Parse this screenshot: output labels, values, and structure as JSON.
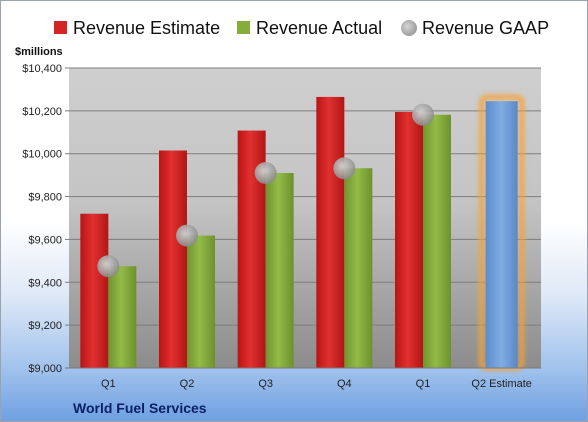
{
  "chart_data": {
    "type": "bar",
    "company": "World Fuel Services",
    "ylabel": "$millions",
    "ylim": [
      9000,
      10400
    ],
    "yticks": [
      9000,
      9200,
      9400,
      9600,
      9800,
      10000,
      10200,
      10400
    ],
    "ytick_labels": [
      "$9,000",
      "$9,200",
      "$9,400",
      "$9,600",
      "$9,800",
      "$10,000",
      "$10,200",
      "$10,400"
    ],
    "categories": [
      "Q1",
      "Q2",
      "Q3",
      "Q4",
      "Q1",
      "Q2 Estimate"
    ],
    "grid": true,
    "legend_position": "top",
    "series": [
      {
        "name": "Revenue Estimate",
        "kind": "bar",
        "color": "#d42424",
        "values": [
          9720,
          10015,
          10108,
          10265,
          10195,
          null
        ]
      },
      {
        "name": "Revenue Actual",
        "kind": "bar",
        "color": "#86ad3a",
        "values": [
          9475,
          9618,
          9910,
          9932,
          10182,
          null
        ]
      },
      {
        "name": "Revenue GAAP",
        "kind": "marker",
        "color": "#a9a9a9",
        "values": [
          9475,
          9618,
          9910,
          9932,
          10182,
          null
        ]
      },
      {
        "name": "Q2 Estimate",
        "kind": "highlight-bar",
        "color": "#6f9fd8",
        "values": [
          null,
          null,
          null,
          null,
          null,
          10245
        ]
      }
    ]
  }
}
